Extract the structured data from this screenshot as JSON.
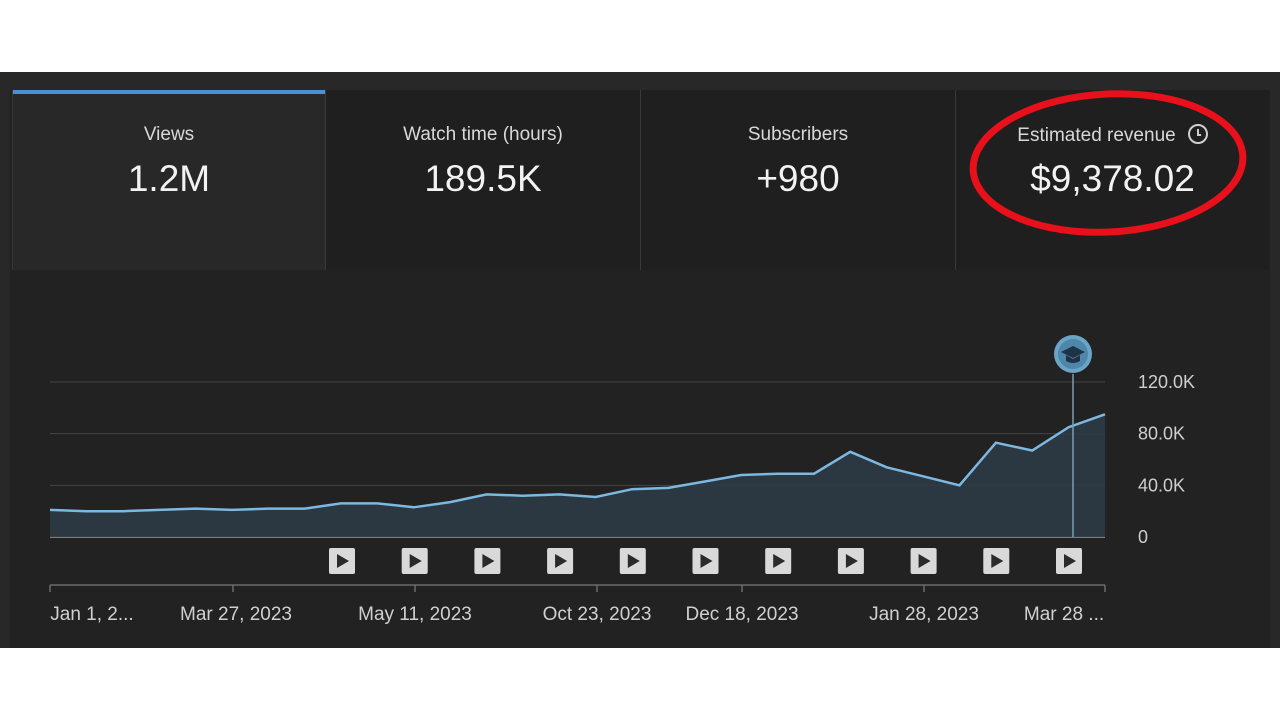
{
  "cards": [
    {
      "label": "Views",
      "value": "1.2M",
      "active": true
    },
    {
      "label": "Watch time (hours)",
      "value": "189.5K",
      "active": false
    },
    {
      "label": "Subscribers",
      "value": "+980",
      "active": false
    },
    {
      "label": "Estimated revenue",
      "value": "$9,378.02",
      "active": false,
      "icon": "clock-icon",
      "annotation": "red-circle-highlight"
    }
  ],
  "colors": {
    "line": "#7cb8e0",
    "area": "#2e3b45",
    "accent": "#4a90d9",
    "highlight": "#e8101a",
    "background": "#222222"
  },
  "chart_data": {
    "type": "area",
    "ylabel_ticks": [
      "120.0K",
      "80.0K",
      "40.0K",
      "0"
    ],
    "y_tick_values": [
      120000,
      80000,
      40000,
      0
    ],
    "ylim": [
      0,
      120000
    ],
    "x_tick_labels": [
      "Jan 1, 2...",
      "Mar 27, 2023",
      "May 11, 2023",
      "Oct 23, 2023",
      "Dec 18, 2023",
      "Jan 28, 2023",
      "Mar 28 ..."
    ],
    "series": [
      {
        "values": [
          21000,
          20000,
          20000,
          21000,
          22000,
          21000,
          22000,
          22000,
          26000,
          26000,
          23000,
          27000,
          33000,
          32000,
          33000,
          31000,
          37000,
          38000,
          43000,
          48000,
          49000,
          49000,
          66000,
          54000,
          47000,
          40000,
          73000,
          67000,
          85000,
          95000
        ]
      }
    ],
    "grid": true,
    "marker_icon": "graduation-cap-icon",
    "video_markers": 11
  }
}
